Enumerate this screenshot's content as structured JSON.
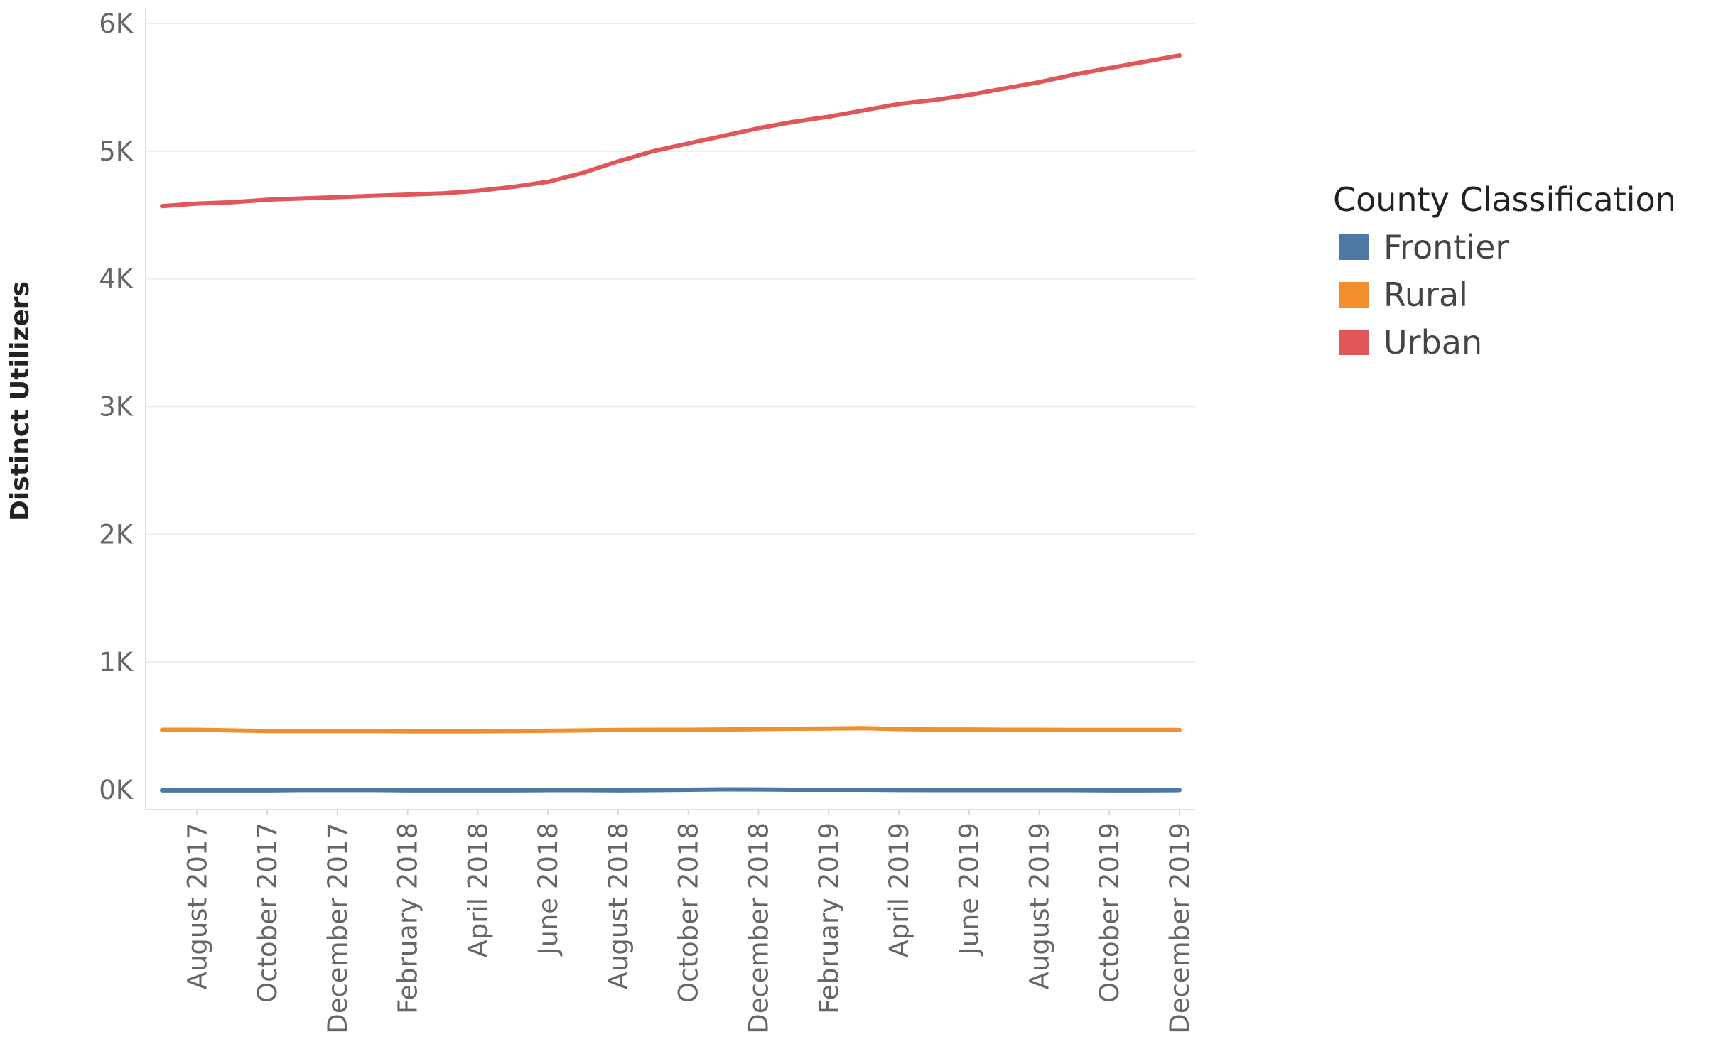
{
  "chart_data": {
    "type": "line",
    "ylabel": "Distinct Utilizers",
    "ylim": [
      0,
      6000
    ],
    "yticks": [
      0,
      1000,
      2000,
      3000,
      4000,
      5000,
      6000
    ],
    "ytick_labels": [
      "0K",
      "1K",
      "2K",
      "3K",
      "4K",
      "5K",
      "6K"
    ],
    "grid": true,
    "x": [
      "2017-07",
      "2017-08",
      "2017-09",
      "2017-10",
      "2017-11",
      "2017-12",
      "2018-01",
      "2018-02",
      "2018-03",
      "2018-04",
      "2018-05",
      "2018-06",
      "2018-07",
      "2018-08",
      "2018-09",
      "2018-10",
      "2018-11",
      "2018-12",
      "2019-01",
      "2019-02",
      "2019-03",
      "2019-04",
      "2019-05",
      "2019-06",
      "2019-07",
      "2019-08",
      "2019-09",
      "2019-10",
      "2019-11",
      "2019-12"
    ],
    "x_tick_labels": [
      "August 2017",
      "October 2017",
      "December 2017",
      "February 2018",
      "April 2018",
      "June 2018",
      "August 2018",
      "October 2018",
      "December 2018",
      "February 2019",
      "April 2019",
      "June 2019",
      "August 2019",
      "October 2019",
      "December 2019"
    ],
    "legend": {
      "title": "County Classification",
      "position": "right"
    },
    "series": [
      {
        "name": "Frontier",
        "color": "#4e79a7",
        "values": [
          -5,
          -5,
          -5,
          -5,
          -2,
          -2,
          -2,
          -5,
          -5,
          -5,
          -5,
          -3,
          -3,
          -5,
          -3,
          0,
          3,
          2,
          0,
          0,
          0,
          -2,
          -3,
          -3,
          -3,
          -3,
          -3,
          -5,
          -5,
          -3
        ]
      },
      {
        "name": "Rural",
        "color": "#f28e2b",
        "values": [
          470,
          470,
          465,
          460,
          460,
          460,
          460,
          458,
          458,
          458,
          460,
          462,
          465,
          468,
          470,
          470,
          472,
          475,
          478,
          480,
          482,
          475,
          472,
          472,
          470,
          470,
          468,
          468,
          468,
          468
        ]
      },
      {
        "name": "Urban",
        "color": "#e15759",
        "values": [
          4570,
          4590,
          4600,
          4620,
          4630,
          4640,
          4650,
          4660,
          4670,
          4690,
          4720,
          4760,
          4830,
          4920,
          5000,
          5060,
          5120,
          5180,
          5230,
          5270,
          5320,
          5370,
          5400,
          5440,
          5490,
          5540,
          5600,
          5650,
          5700,
          5750
        ]
      }
    ]
  }
}
